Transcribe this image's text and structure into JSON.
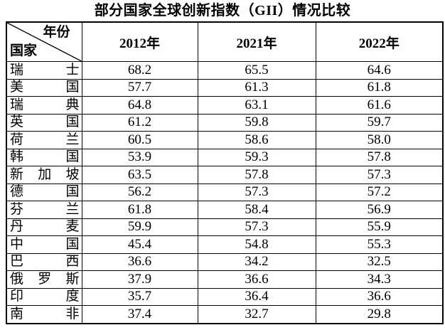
{
  "title": "部分国家全球创新指数（GII）情况比较",
  "table": {
    "corner": {
      "top_right": "年份",
      "bottom_left": "国家"
    },
    "columns": [
      "2012年",
      "2021年",
      "2022年"
    ],
    "rows": [
      {
        "country": "瑞士",
        "values": [
          "68.2",
          "65.5",
          "64.6"
        ]
      },
      {
        "country": "美国",
        "values": [
          "57.7",
          "61.3",
          "61.8"
        ]
      },
      {
        "country": "瑞典",
        "values": [
          "64.8",
          "63.1",
          "61.6"
        ]
      },
      {
        "country": "英国",
        "values": [
          "61.2",
          "59.8",
          "59.7"
        ]
      },
      {
        "country": "荷兰",
        "values": [
          "60.5",
          "58.6",
          "58.0"
        ]
      },
      {
        "country": "韩国",
        "values": [
          "53.9",
          "59.3",
          "57.8"
        ]
      },
      {
        "country": "新加坡",
        "values": [
          "63.5",
          "57.8",
          "57.3"
        ]
      },
      {
        "country": "德国",
        "values": [
          "56.2",
          "57.3",
          "57.2"
        ]
      },
      {
        "country": "芬兰",
        "values": [
          "61.8",
          "58.4",
          "56.9"
        ]
      },
      {
        "country": "丹麦",
        "values": [
          "59.9",
          "57.3",
          "55.9"
        ]
      },
      {
        "country": "中国",
        "values": [
          "45.4",
          "54.8",
          "55.3"
        ]
      },
      {
        "country": "巴西",
        "values": [
          "36.6",
          "34.2",
          "32.5"
        ]
      },
      {
        "country": "俄罗斯",
        "values": [
          "37.9",
          "36.6",
          "34.3"
        ]
      },
      {
        "country": "印度",
        "values": [
          "35.7",
          "36.4",
          "36.6"
        ]
      },
      {
        "country": "南非",
        "values": [
          "37.4",
          "32.7",
          "29.8"
        ]
      }
    ]
  }
}
